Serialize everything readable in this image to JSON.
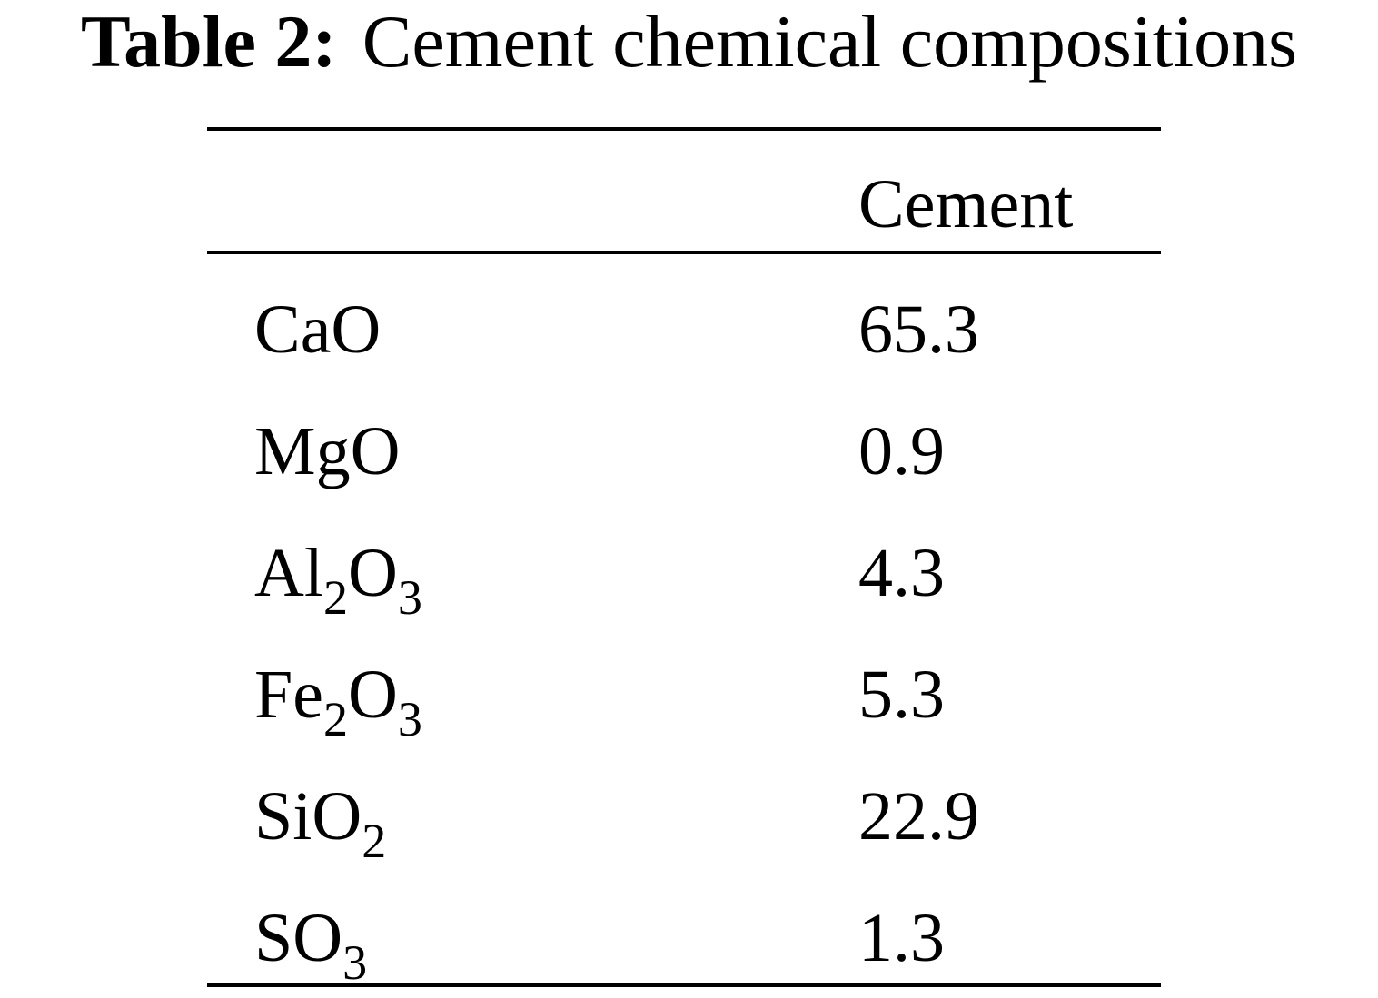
{
  "title": {
    "label": "Table 2:",
    "caption": "Cement chemical compositions"
  },
  "table": {
    "header": [
      "Cement"
    ],
    "rows": [
      {
        "label": [
          {
            "text": "CaO"
          }
        ],
        "value": 65.3
      },
      {
        "label": [
          {
            "text": "MgO"
          }
        ],
        "value": 0.9
      },
      {
        "label": [
          {
            "text": "Al"
          },
          {
            "text": "2",
            "sub": true
          },
          {
            "text": "O"
          },
          {
            "text": "3",
            "sub": true
          }
        ],
        "value": 4.3
      },
      {
        "label": [
          {
            "text": "Fe"
          },
          {
            "text": "2",
            "sub": true
          },
          {
            "text": "O"
          },
          {
            "text": "3",
            "sub": true
          }
        ],
        "value": 5.3
      },
      {
        "label": [
          {
            "text": "SiO"
          },
          {
            "text": "2",
            "sub": true
          }
        ],
        "value": 22.9
      },
      {
        "label": [
          {
            "text": "SO"
          },
          {
            "text": "3",
            "sub": true
          }
        ],
        "value": 1.3
      }
    ]
  }
}
